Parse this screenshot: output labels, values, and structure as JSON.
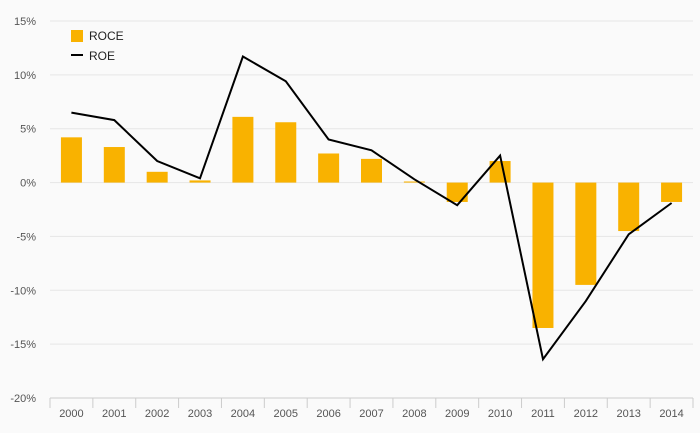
{
  "chart_data": {
    "type": "bar",
    "categories": [
      "2000",
      "2001",
      "2002",
      "2003",
      "2004",
      "2005",
      "2006",
      "2007",
      "2008",
      "2009",
      "2010",
      "2011",
      "2012",
      "2013",
      "2014"
    ],
    "series": [
      {
        "name": "ROCE",
        "kind": "bar",
        "color": "#f9b200",
        "values": [
          4.2,
          3.3,
          1.0,
          0.2,
          6.1,
          5.6,
          2.7,
          2.2,
          0.1,
          -1.8,
          2.0,
          -13.5,
          -9.5,
          -4.5,
          -1.8
        ]
      },
      {
        "name": "ROE",
        "kind": "line",
        "color": "#000000",
        "values": [
          6.5,
          5.8,
          2.0,
          0.4,
          11.7,
          9.4,
          4.0,
          3.0,
          0.3,
          -2.1,
          2.5,
          -16.4,
          -11.0,
          -4.8,
          -1.9
        ]
      }
    ],
    "ylim": [
      -20,
      15
    ],
    "yticks": [
      15,
      10,
      5,
      0,
      -5,
      -10,
      -15,
      -20
    ],
    "ytick_labels": [
      "15%",
      "10%",
      "5%",
      "0%",
      "-5%",
      "-10%",
      "-15%",
      "-20%"
    ],
    "grid": true,
    "legend_position": "top-left",
    "title": "",
    "xlabel": "",
    "ylabel": ""
  }
}
